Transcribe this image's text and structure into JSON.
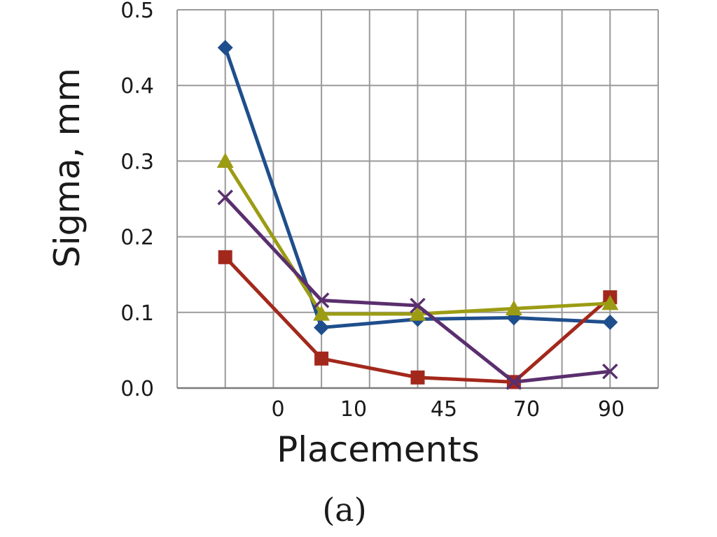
{
  "chart_data": {
    "type": "line",
    "x_positions": [
      "",
      "0",
      "10",
      "45",
      "70",
      "90"
    ],
    "x_tick_labels": [
      "0",
      "10",
      "45",
      "70",
      "90"
    ],
    "xlabel": "Placements",
    "ylabel": "Sigma, mm",
    "ylim": [
      0,
      0.5
    ],
    "y_ticks": [
      "0.0",
      "0.1",
      "0.2",
      "0.3",
      "0.4",
      "0.5"
    ],
    "grid": true,
    "legend": "none",
    "caption": "(a)",
    "series": [
      {
        "color": "#1f4e8c",
        "marker": "diamond",
        "values": [
          0.45,
          0.08,
          0.091,
          0.093,
          0.087
        ]
      },
      {
        "color": "#a3281c",
        "marker": "square",
        "values": [
          0.173,
          0.039,
          0.014,
          0.008,
          0.12
        ]
      },
      {
        "color": "#9c9c14",
        "marker": "triangle",
        "values": [
          0.3,
          0.098,
          0.098,
          0.105,
          0.112
        ]
      },
      {
        "color": "#5a2f6e",
        "marker": "x",
        "values": [
          0.252,
          0.116,
          0.109,
          0.008,
          0.022
        ]
      }
    ]
  }
}
